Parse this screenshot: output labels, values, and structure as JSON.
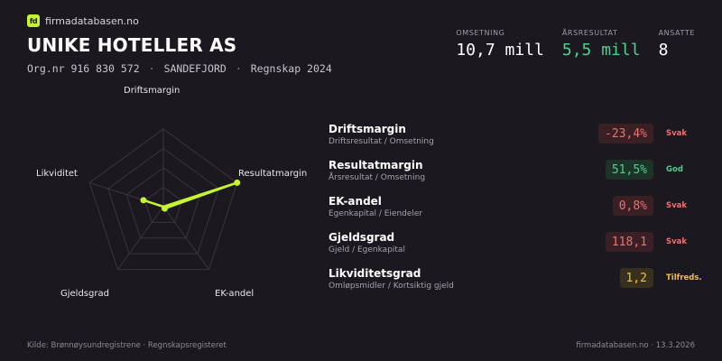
{
  "brand": {
    "logo": "fd",
    "name": "firmadatabasen.no"
  },
  "company": {
    "name": "UNIKE HOTELLER AS",
    "orgnr": "Org.nr 916 830 572",
    "location": "SANDEFJORD",
    "period": "Regnskap 2024",
    "separator": "·"
  },
  "kpis": [
    {
      "label": "OMSETNING",
      "value": "10,7 mill"
    },
    {
      "label": "ÅRSRESULTAT",
      "value": "5,5 mill"
    },
    {
      "label": "ANSATTE",
      "value": "8"
    }
  ],
  "radar": {
    "axes": [
      "Driftsmargin",
      "Resultatmargin",
      "EK-andel",
      "Gjeldsgrad",
      "Likviditet"
    ],
    "values": [
      0.0,
      1.0,
      0.03,
      0.0,
      0.27
    ],
    "color": "#c6f432"
  },
  "metrics": [
    {
      "name": "Driftsmargin",
      "sub": "Driftsresultat / Omsetning",
      "value": "-23,4%",
      "status": "Svak",
      "tone": "red"
    },
    {
      "name": "Resultatmargin",
      "sub": "Årsresultat / Omsetning",
      "value": "51,5%",
      "status": "God",
      "tone": "green"
    },
    {
      "name": "EK-andel",
      "sub": "Egenkapital / Eiendeler",
      "value": "0,8%",
      "status": "Svak",
      "tone": "red"
    },
    {
      "name": "Gjeldsgrad",
      "sub": "Gjeld / Egenkapital",
      "value": "118,1",
      "status": "Svak",
      "tone": "red"
    },
    {
      "name": "Likviditetsgrad",
      "sub": "Omløpsmidler / Kortsiktig gjeld",
      "value": "1,2",
      "status": "Tilfreds.",
      "tone": "amber"
    }
  ],
  "footer": {
    "source": "Kilde: Brønnøysundregistrene · Regnskapsregisteret",
    "site": "firmadatabasen.no · 13.3.2026"
  }
}
